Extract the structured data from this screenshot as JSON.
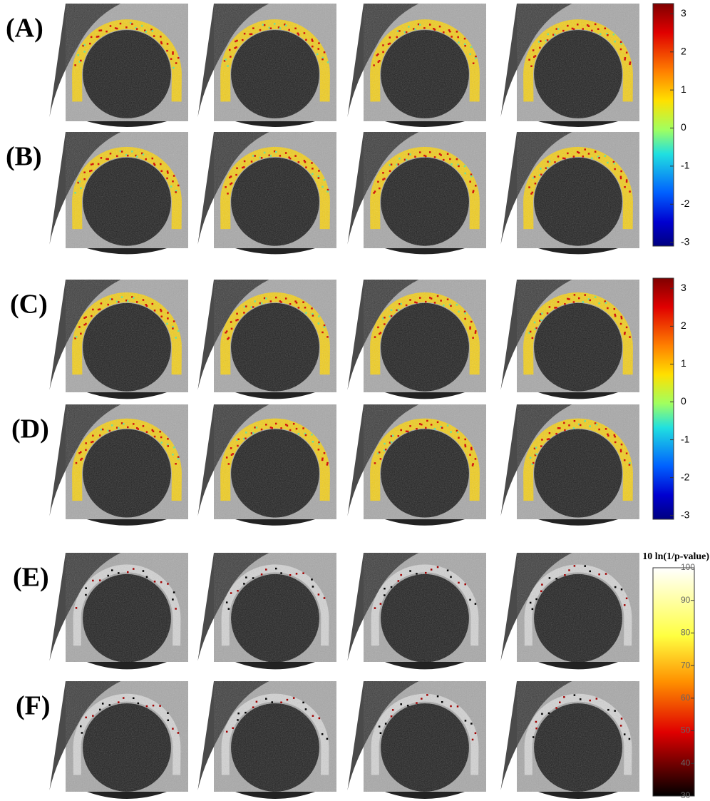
{
  "rows": [
    "(A)",
    "(B)",
    "(C)",
    "(D)",
    "(E)",
    "(F)"
  ],
  "colorbars": [
    {
      "lim": [
        -3.1,
        3.27
      ],
      "ticks": [
        3,
        2,
        1,
        0,
        -1,
        -2,
        -3
      ]
    },
    {
      "lim": [
        -3.1,
        3.27
      ],
      "ticks": [
        3,
        2,
        1,
        0,
        -1,
        -2,
        -3
      ]
    },
    {
      "title": "10 ln(1/p-value)",
      "lim": [
        30,
        100
      ],
      "ticks": [
        100,
        90,
        80,
        70,
        60,
        50,
        40,
        30
      ]
    }
  ]
}
